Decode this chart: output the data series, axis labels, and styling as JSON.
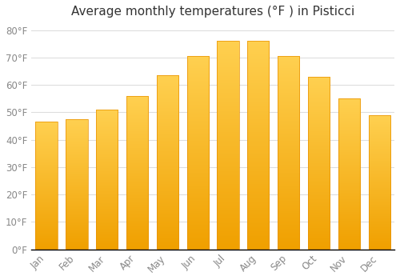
{
  "title": "Average monthly temperatures (°F ) in Pisticci",
  "months": [
    "Jan",
    "Feb",
    "Mar",
    "Apr",
    "May",
    "Jun",
    "Jul",
    "Aug",
    "Sep",
    "Oct",
    "Nov",
    "Dec"
  ],
  "values": [
    46.5,
    47.5,
    51,
    56,
    63.5,
    70.5,
    76,
    76,
    70.5,
    63,
    55,
    49
  ],
  "bar_color_top": "#FFD050",
  "bar_color_bottom": "#F0A000",
  "bar_edge_color": "#E89000",
  "background_color": "#FFFFFF",
  "plot_bg_color": "#FFFFFF",
  "grid_color": "#DDDDDD",
  "tick_label_color": "#888888",
  "title_color": "#333333",
  "ylim": [
    0,
    83
  ],
  "yticks": [
    0,
    10,
    20,
    30,
    40,
    50,
    60,
    70,
    80
  ],
  "ytick_labels": [
    "0°F",
    "10°F",
    "20°F",
    "30°F",
    "40°F",
    "50°F",
    "60°F",
    "70°F",
    "80°F"
  ],
  "title_fontsize": 11,
  "tick_fontsize": 8.5
}
